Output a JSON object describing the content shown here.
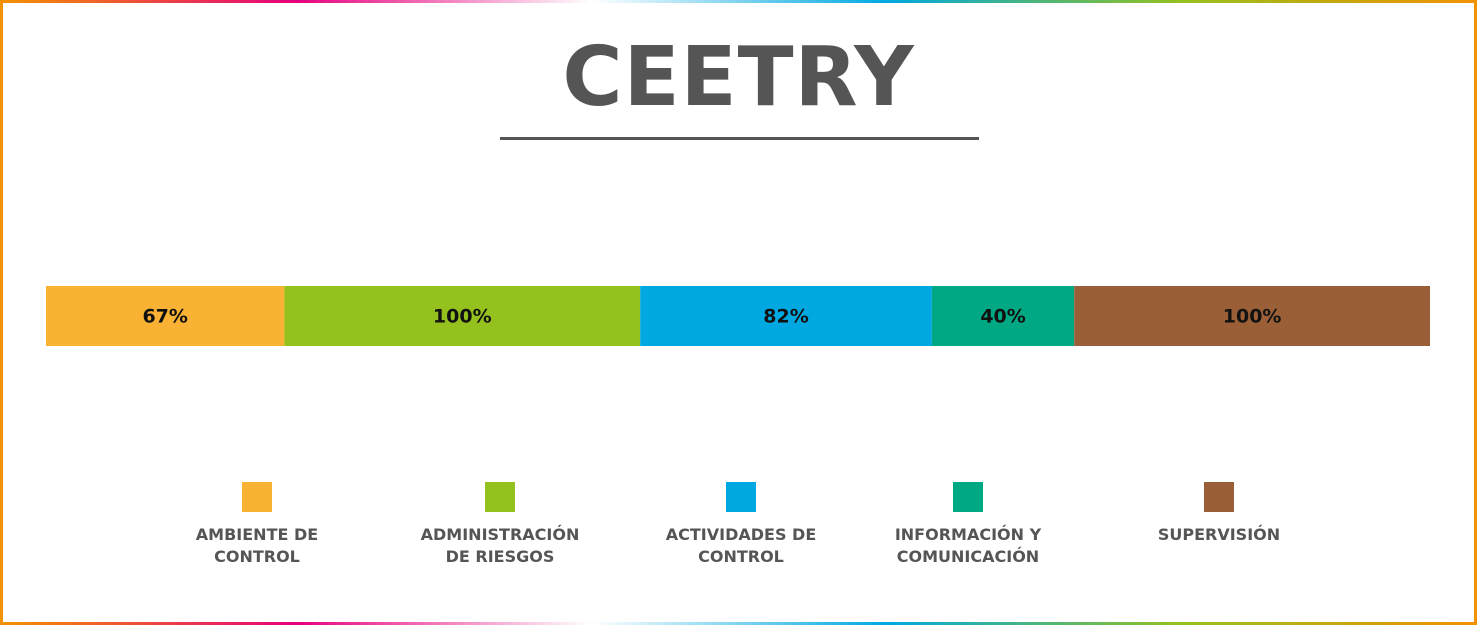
{
  "chart_data": {
    "type": "stacked-bar",
    "orientation": "horizontal",
    "title": "CEETRY",
    "series": [
      {
        "name": "AMBIENTE DE CONTROL",
        "color": "#f9b233",
        "values": [
          67
        ],
        "value_labels": [
          "67%"
        ]
      },
      {
        "name": "ADMINISTRACIÓN DE RIESGOS",
        "color": "#95c11f",
        "values": [
          100
        ],
        "value_labels": [
          "100%"
        ]
      },
      {
        "name": "ACTIVIDADES DE CONTROL",
        "color": "#00a8e1",
        "values": [
          82
        ],
        "value_labels": [
          "82%"
        ]
      },
      {
        "name": "INFORMACIÓN Y COMUNICACIÓN",
        "color": "#00a883",
        "values": [
          40
        ],
        "value_labels": [
          "40%"
        ]
      },
      {
        "name": "SUPERVISIÓN",
        "color": "#9a5f37",
        "values": [
          100
        ],
        "value_labels": [
          "100%"
        ]
      }
    ]
  }
}
